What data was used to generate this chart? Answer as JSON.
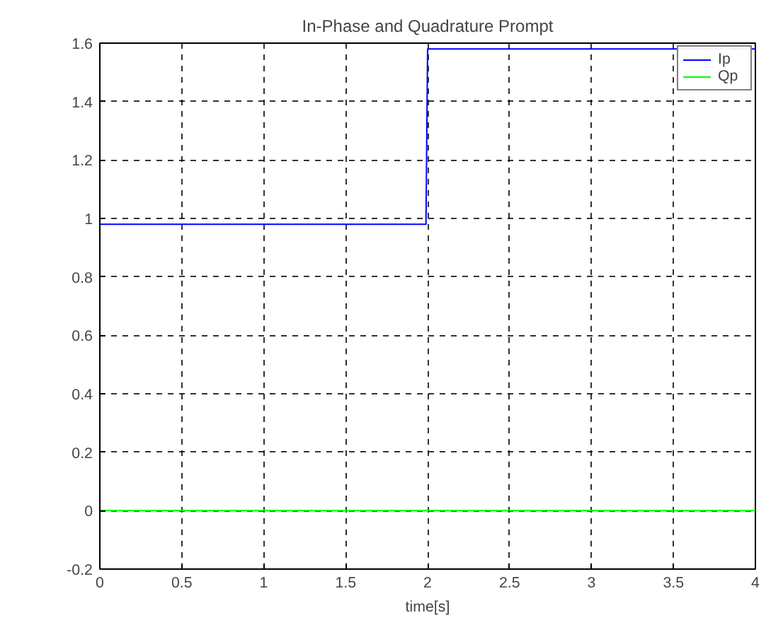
{
  "chart_data": {
    "type": "line",
    "title": "In-Phase and Quadrature Prompt",
    "xlabel": "time[s]",
    "x": [
      0,
      0.25,
      0.5,
      0.75,
      1,
      1.25,
      1.5,
      1.75,
      1.99,
      2.0,
      2.25,
      2.5,
      2.75,
      3,
      3.25,
      4
    ],
    "series": [
      {
        "name": "Ip",
        "color": "#0000ff",
        "values": [
          0.98,
          0.98,
          0.98,
          0.98,
          0.98,
          0.98,
          0.98,
          0.98,
          0.98,
          1.58,
          1.58,
          1.58,
          1.58,
          1.58,
          1.58,
          1.58
        ]
      },
      {
        "name": "Qp",
        "color": "#00ff00",
        "values": [
          0,
          0,
          0,
          0,
          0,
          0,
          0,
          0,
          0,
          0,
          0,
          0,
          0,
          0,
          0,
          0
        ]
      }
    ],
    "xlim": [
      0,
      4
    ],
    "ylim": [
      -0.2,
      1.6
    ],
    "xticks": [
      0,
      0.5,
      1,
      1.5,
      2,
      2.5,
      3,
      3.5,
      4
    ],
    "yticks": [
      -0.2,
      0,
      0.2,
      0.4,
      0.6,
      0.8,
      1,
      1.2,
      1.4,
      1.6
    ],
    "grid": true,
    "legend": "top right",
    "line_style": "solid",
    "marker": "none"
  }
}
